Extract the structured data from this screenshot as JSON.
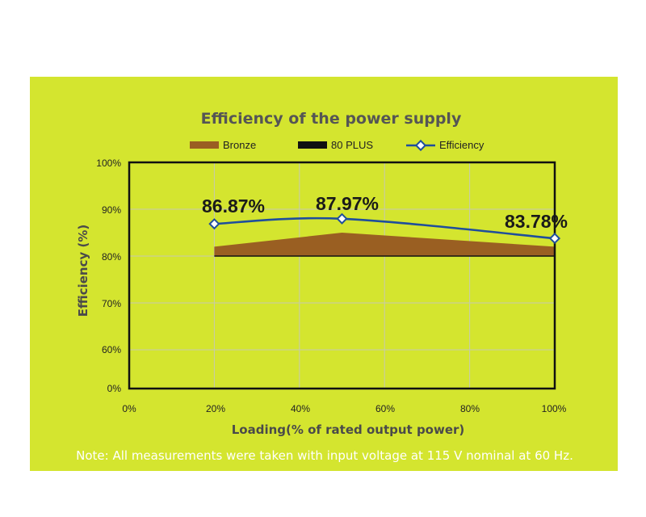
{
  "chart_data": {
    "type": "area",
    "title": "Efficiency of the power supply",
    "xlabel": "Loading(% of rated output power)",
    "ylabel": "Efficiency (%)",
    "xlim": [
      0,
      100
    ],
    "ylim": [
      0,
      100
    ],
    "x_ticks": [
      "0%",
      "20%",
      "40%",
      "60%",
      "80%",
      "100%"
    ],
    "y_ticks": [
      "0%",
      "60%",
      "70%",
      "80%",
      "90%",
      "100%"
    ],
    "legend_position": "top",
    "grid": true,
    "series": [
      {
        "name": "Bronze",
        "kind": "area",
        "color": "#9a5f22",
        "x": [
          20,
          50,
          100
        ],
        "y": [
          82,
          85,
          82
        ]
      },
      {
        "name": "80 PLUS",
        "kind": "line",
        "color": "#111111",
        "x": [
          20,
          50,
          100
        ],
        "y": [
          80,
          80,
          80
        ]
      },
      {
        "name": "Efficiency",
        "kind": "line",
        "color": "#1f4e9c",
        "x": [
          20,
          50,
          100
        ],
        "y": [
          86.87,
          87.97,
          83.78
        ]
      }
    ],
    "data_labels": [
      "86.87%",
      "87.97%",
      "83.78%"
    ]
  },
  "note": "Note: All measurements were taken with input voltage at 115 V nominal at 60 Hz.",
  "colors": {
    "background": "#d4e52f",
    "plot_border": "#111111",
    "grid": "#c8c8b8"
  }
}
